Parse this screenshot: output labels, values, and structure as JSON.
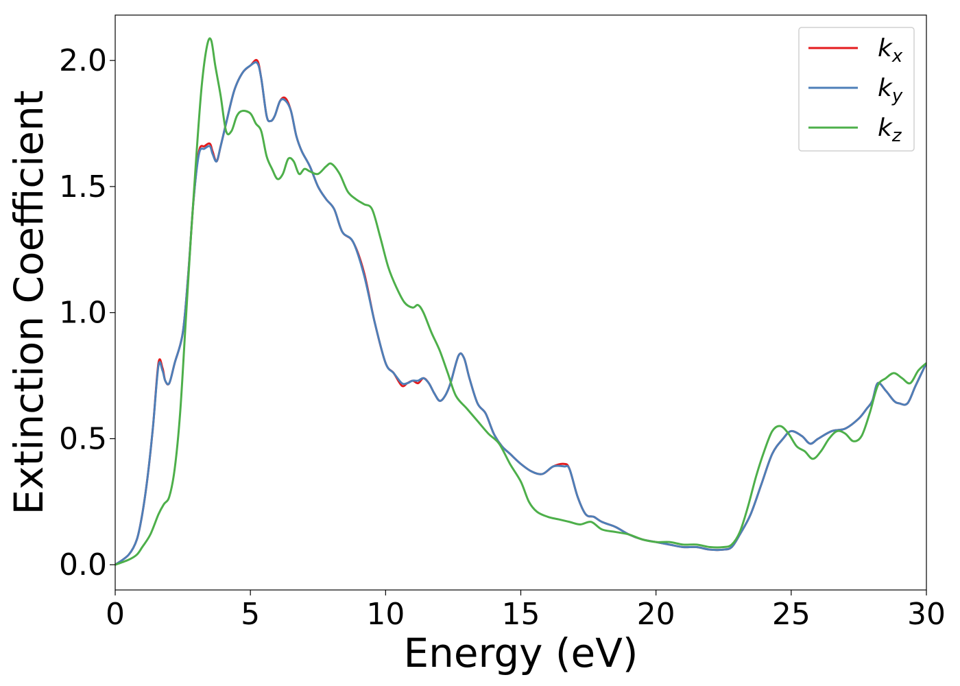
{
  "chart_data": {
    "type": "line",
    "title": "",
    "xlabel": "Energy (eV)",
    "ylabel": "Extinction Coefficient",
    "xlim": [
      0,
      30
    ],
    "ylim": [
      -0.1,
      2.18
    ],
    "xticks": [
      0,
      5,
      10,
      15,
      20,
      25,
      30
    ],
    "xtick_labels": [
      "0",
      "5",
      "10",
      "15",
      "20",
      "25",
      "30"
    ],
    "yticks": [
      0.0,
      0.5,
      1.0,
      1.5,
      2.0
    ],
    "ytick_labels": [
      "0.0",
      "0.5",
      "1.0",
      "1.5",
      "2.0"
    ],
    "grid": false,
    "legend_position": "top-right",
    "series": [
      {
        "name": "k",
        "subscript": "x",
        "color": "#e41a1c",
        "x": [
          0,
          0.5,
          0.8,
          1.0,
          1.2,
          1.4,
          1.6,
          1.75,
          1.85,
          2.0,
          2.2,
          2.5,
          2.7,
          2.9,
          3.1,
          3.3,
          3.5,
          3.6,
          3.75,
          3.9,
          4.1,
          4.4,
          4.7,
          5.0,
          5.25,
          5.4,
          5.6,
          5.75,
          5.9,
          6.1,
          6.3,
          6.5,
          6.7,
          6.9,
          7.2,
          7.5,
          7.8,
          8.1,
          8.4,
          8.8,
          9.2,
          9.6,
          10.0,
          10.3,
          10.6,
          10.8,
          11.0,
          11.2,
          11.4,
          11.6,
          11.8,
          12.0,
          12.2,
          12.4,
          12.7,
          12.9,
          13.1,
          13.4,
          13.7,
          14.0,
          14.3,
          14.6,
          15.0,
          15.4,
          15.8,
          16.2,
          16.6,
          16.8,
          17.1,
          17.4,
          17.7,
          18.0,
          18.5,
          19.0,
          19.5,
          20.0,
          20.5,
          21.0,
          21.5,
          22.0,
          22.5,
          22.8,
          23.1,
          23.5,
          23.9,
          24.3,
          24.7,
          25.0,
          25.4,
          25.7,
          26.0,
          26.5,
          27.0,
          27.5,
          27.8,
          28.0,
          28.2,
          28.5,
          28.8,
          29.0,
          29.3,
          29.6,
          30.0
        ],
        "y": [
          0.0,
          0.04,
          0.1,
          0.2,
          0.35,
          0.55,
          0.8,
          0.78,
          0.73,
          0.72,
          0.8,
          0.92,
          1.15,
          1.45,
          1.64,
          1.66,
          1.67,
          1.64,
          1.6,
          1.66,
          1.75,
          1.88,
          1.95,
          1.98,
          2.0,
          1.93,
          1.78,
          1.76,
          1.78,
          1.84,
          1.85,
          1.8,
          1.7,
          1.64,
          1.58,
          1.5,
          1.45,
          1.41,
          1.32,
          1.28,
          1.16,
          0.96,
          0.8,
          0.76,
          0.71,
          0.72,
          0.73,
          0.72,
          0.74,
          0.72,
          0.68,
          0.65,
          0.67,
          0.72,
          0.83,
          0.82,
          0.74,
          0.64,
          0.6,
          0.52,
          0.47,
          0.44,
          0.4,
          0.37,
          0.36,
          0.39,
          0.4,
          0.38,
          0.27,
          0.2,
          0.19,
          0.17,
          0.15,
          0.12,
          0.1,
          0.09,
          0.08,
          0.07,
          0.07,
          0.06,
          0.06,
          0.07,
          0.12,
          0.2,
          0.32,
          0.44,
          0.5,
          0.53,
          0.51,
          0.48,
          0.5,
          0.53,
          0.54,
          0.58,
          0.62,
          0.65,
          0.72,
          0.69,
          0.65,
          0.64,
          0.64,
          0.71,
          0.8
        ]
      },
      {
        "name": "k",
        "subscript": "y",
        "color": "#4d7fb8",
        "x": [
          0,
          0.5,
          0.8,
          1.0,
          1.2,
          1.4,
          1.6,
          1.75,
          1.85,
          2.0,
          2.2,
          2.5,
          2.7,
          2.9,
          3.1,
          3.3,
          3.5,
          3.6,
          3.75,
          3.9,
          4.1,
          4.4,
          4.7,
          5.0,
          5.25,
          5.4,
          5.6,
          5.75,
          5.9,
          6.1,
          6.3,
          6.5,
          6.7,
          6.9,
          7.2,
          7.5,
          7.8,
          8.1,
          8.4,
          8.8,
          9.2,
          9.6,
          10.0,
          10.3,
          10.6,
          10.8,
          11.0,
          11.2,
          11.4,
          11.6,
          11.8,
          12.0,
          12.2,
          12.4,
          12.7,
          12.9,
          13.1,
          13.4,
          13.7,
          14.0,
          14.3,
          14.6,
          15.0,
          15.4,
          15.8,
          16.2,
          16.6,
          16.8,
          17.1,
          17.4,
          17.7,
          18.0,
          18.5,
          19.0,
          19.5,
          20.0,
          20.5,
          21.0,
          21.5,
          22.0,
          22.5,
          22.8,
          23.1,
          23.5,
          23.9,
          24.3,
          24.7,
          25.0,
          25.4,
          25.7,
          26.0,
          26.5,
          27.0,
          27.5,
          27.8,
          28.0,
          28.2,
          28.5,
          28.8,
          29.0,
          29.3,
          29.6,
          30.0
        ],
        "y": [
          0.0,
          0.04,
          0.1,
          0.2,
          0.35,
          0.55,
          0.79,
          0.77,
          0.73,
          0.72,
          0.8,
          0.92,
          1.15,
          1.45,
          1.63,
          1.65,
          1.66,
          1.63,
          1.6,
          1.66,
          1.75,
          1.88,
          1.95,
          1.98,
          1.99,
          1.93,
          1.78,
          1.76,
          1.78,
          1.84,
          1.84,
          1.8,
          1.7,
          1.64,
          1.58,
          1.5,
          1.45,
          1.41,
          1.32,
          1.28,
          1.15,
          0.96,
          0.8,
          0.76,
          0.72,
          0.72,
          0.73,
          0.73,
          0.74,
          0.72,
          0.68,
          0.65,
          0.67,
          0.72,
          0.83,
          0.82,
          0.74,
          0.64,
          0.6,
          0.52,
          0.47,
          0.44,
          0.4,
          0.37,
          0.36,
          0.39,
          0.39,
          0.38,
          0.27,
          0.2,
          0.19,
          0.17,
          0.15,
          0.12,
          0.1,
          0.09,
          0.08,
          0.07,
          0.07,
          0.06,
          0.06,
          0.07,
          0.12,
          0.2,
          0.32,
          0.44,
          0.5,
          0.53,
          0.51,
          0.48,
          0.5,
          0.53,
          0.54,
          0.58,
          0.62,
          0.65,
          0.72,
          0.69,
          0.65,
          0.64,
          0.64,
          0.71,
          0.8
        ]
      },
      {
        "name": "k",
        "subscript": "z",
        "color": "#4daf4a",
        "x": [
          0,
          0.5,
          0.8,
          1.0,
          1.3,
          1.6,
          1.8,
          2.0,
          2.2,
          2.4,
          2.6,
          2.8,
          3.0,
          3.2,
          3.4,
          3.55,
          3.7,
          3.9,
          4.1,
          4.3,
          4.5,
          4.7,
          5.0,
          5.2,
          5.4,
          5.6,
          5.8,
          6.0,
          6.2,
          6.4,
          6.6,
          6.8,
          7.0,
          7.2,
          7.5,
          7.8,
          8.0,
          8.3,
          8.6,
          8.9,
          9.2,
          9.5,
          9.8,
          10.1,
          10.4,
          10.7,
          11.0,
          11.2,
          11.4,
          11.7,
          12.0,
          12.3,
          12.6,
          13.0,
          13.4,
          13.8,
          14.2,
          14.6,
          15.0,
          15.3,
          15.6,
          16.0,
          16.4,
          16.8,
          17.2,
          17.6,
          18.0,
          18.5,
          19.0,
          19.5,
          20.0,
          20.5,
          21.0,
          21.5,
          22.0,
          22.5,
          22.8,
          23.1,
          23.4,
          23.7,
          24.0,
          24.3,
          24.6,
          24.9,
          25.2,
          25.5,
          25.8,
          26.1,
          26.4,
          26.7,
          27.0,
          27.3,
          27.6,
          27.9,
          28.2,
          28.5,
          28.8,
          29.1,
          29.4,
          29.7,
          30.0
        ],
        "y": [
          0.0,
          0.02,
          0.04,
          0.07,
          0.12,
          0.2,
          0.24,
          0.27,
          0.38,
          0.6,
          0.95,
          1.3,
          1.62,
          1.9,
          2.06,
          2.08,
          1.98,
          1.86,
          1.72,
          1.72,
          1.78,
          1.8,
          1.79,
          1.75,
          1.72,
          1.62,
          1.57,
          1.53,
          1.55,
          1.61,
          1.6,
          1.55,
          1.57,
          1.56,
          1.55,
          1.58,
          1.59,
          1.55,
          1.48,
          1.45,
          1.43,
          1.41,
          1.3,
          1.18,
          1.1,
          1.04,
          1.02,
          1.03,
          1.0,
          0.92,
          0.85,
          0.76,
          0.67,
          0.62,
          0.57,
          0.52,
          0.48,
          0.4,
          0.33,
          0.25,
          0.21,
          0.19,
          0.18,
          0.17,
          0.16,
          0.17,
          0.14,
          0.13,
          0.12,
          0.1,
          0.09,
          0.09,
          0.08,
          0.08,
          0.07,
          0.07,
          0.08,
          0.13,
          0.23,
          0.35,
          0.45,
          0.53,
          0.55,
          0.52,
          0.47,
          0.45,
          0.42,
          0.45,
          0.5,
          0.53,
          0.52,
          0.49,
          0.51,
          0.6,
          0.71,
          0.74,
          0.76,
          0.74,
          0.72,
          0.77,
          0.8
        ]
      }
    ]
  }
}
